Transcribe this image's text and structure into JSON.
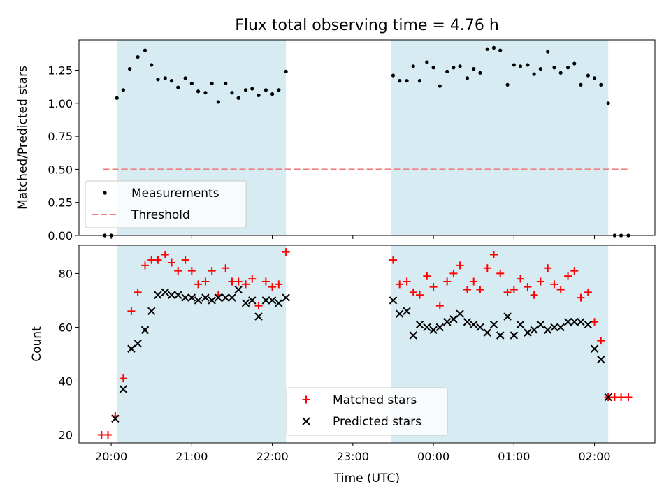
{
  "chart_data": [
    {
      "type": "scatter",
      "title": "Flux total observing time = 4.76 h",
      "xlabel": "",
      "ylabel": "Matched/Predicted stars",
      "ylim": [
        0,
        1.48
      ],
      "yticks": [
        "0.00",
        "0.25",
        "0.50",
        "0.75",
        "1.00",
        "1.25"
      ],
      "ytick_values": [
        0,
        0.25,
        0.5,
        0.75,
        1.0,
        1.25
      ],
      "x_unit": "hours since 20:00 UTC",
      "xlim": [
        -0.4,
        6.75
      ],
      "shaded_intervals": [
        [
          0.07,
          2.17
        ],
        [
          3.47,
          6.17
        ]
      ],
      "legend": {
        "position": "lower-left",
        "entries": [
          "Measurements",
          "Threshold"
        ]
      },
      "series": [
        {
          "name": "Measurements",
          "marker": "dot",
          "color": "#000000",
          "points": [
            [
              -0.08,
              0.0
            ],
            [
              0.0,
              0.0
            ],
            [
              0.07,
              1.04
            ],
            [
              0.15,
              1.1
            ],
            [
              0.23,
              1.26
            ],
            [
              0.33,
              1.35
            ],
            [
              0.42,
              1.4
            ],
            [
              0.5,
              1.29
            ],
            [
              0.58,
              1.18
            ],
            [
              0.67,
              1.19
            ],
            [
              0.75,
              1.17
            ],
            [
              0.83,
              1.12
            ],
            [
              0.92,
              1.19
            ],
            [
              1.0,
              1.15
            ],
            [
              1.08,
              1.09
            ],
            [
              1.17,
              1.08
            ],
            [
              1.25,
              1.15
            ],
            [
              1.33,
              1.01
            ],
            [
              1.42,
              1.15
            ],
            [
              1.5,
              1.08
            ],
            [
              1.58,
              1.04
            ],
            [
              1.67,
              1.1
            ],
            [
              1.75,
              1.11
            ],
            [
              1.83,
              1.06
            ],
            [
              1.92,
              1.1
            ],
            [
              2.0,
              1.07
            ],
            [
              2.08,
              1.1
            ],
            [
              2.17,
              1.24
            ],
            [
              3.5,
              1.21
            ],
            [
              3.58,
              1.17
            ],
            [
              3.67,
              1.17
            ],
            [
              3.75,
              1.28
            ],
            [
              3.83,
              1.17
            ],
            [
              3.92,
              1.31
            ],
            [
              4.0,
              1.27
            ],
            [
              4.08,
              1.13
            ],
            [
              4.17,
              1.24
            ],
            [
              4.25,
              1.27
            ],
            [
              4.33,
              1.28
            ],
            [
              4.42,
              1.19
            ],
            [
              4.5,
              1.26
            ],
            [
              4.58,
              1.23
            ],
            [
              4.67,
              1.41
            ],
            [
              4.75,
              1.42
            ],
            [
              4.83,
              1.4
            ],
            [
              4.92,
              1.14
            ],
            [
              5.0,
              1.29
            ],
            [
              5.08,
              1.28
            ],
            [
              5.17,
              1.29
            ],
            [
              5.25,
              1.22
            ],
            [
              5.33,
              1.26
            ],
            [
              5.42,
              1.39
            ],
            [
              5.5,
              1.27
            ],
            [
              5.58,
              1.23
            ],
            [
              5.67,
              1.27
            ],
            [
              5.75,
              1.3
            ],
            [
              5.83,
              1.14
            ],
            [
              5.92,
              1.21
            ],
            [
              6.0,
              1.19
            ],
            [
              6.08,
              1.14
            ],
            [
              6.17,
              1.0
            ],
            [
              6.25,
              0.0
            ],
            [
              6.33,
              0.0
            ],
            [
              6.42,
              0.0
            ]
          ]
        },
        {
          "name": "Threshold",
          "line": "dashed",
          "color": "#f08080",
          "points": [
            [
              -0.1,
              0.5
            ],
            [
              6.42,
              0.5
            ]
          ]
        }
      ]
    },
    {
      "type": "scatter",
      "title": "",
      "xlabel": "Time (UTC)",
      "ylabel": "Count",
      "ylim": [
        17,
        90.5
      ],
      "yticks": [
        "20",
        "40",
        "60",
        "80"
      ],
      "ytick_values": [
        20,
        40,
        60,
        80
      ],
      "x_unit": "hours since 20:00 UTC",
      "xlim": [
        -0.4,
        6.75
      ],
      "xticks": [
        "20:00",
        "21:00",
        "22:00",
        "23:00",
        "00:00",
        "01:00",
        "02:00"
      ],
      "xtick_values": [
        0,
        1,
        2,
        3,
        4,
        5,
        6
      ],
      "shaded_intervals": [
        [
          0.07,
          2.17
        ],
        [
          3.47,
          6.17
        ]
      ],
      "legend": {
        "position": "lower-center",
        "entries": [
          "Matched stars",
          "Predicted stars"
        ]
      },
      "series": [
        {
          "name": "Matched stars",
          "marker": "plus",
          "color": "#ff0000",
          "points": [
            [
              -0.12,
              20
            ],
            [
              -0.04,
              20
            ],
            [
              0.05,
              27
            ],
            [
              0.15,
              41
            ],
            [
              0.25,
              66
            ],
            [
              0.33,
              73
            ],
            [
              0.42,
              83
            ],
            [
              0.5,
              85
            ],
            [
              0.58,
              85
            ],
            [
              0.67,
              87
            ],
            [
              0.75,
              84
            ],
            [
              0.83,
              81
            ],
            [
              0.92,
              85
            ],
            [
              1.0,
              81
            ],
            [
              1.08,
              76
            ],
            [
              1.17,
              77
            ],
            [
              1.25,
              81
            ],
            [
              1.33,
              72
            ],
            [
              1.42,
              82
            ],
            [
              1.5,
              77
            ],
            [
              1.58,
              77
            ],
            [
              1.67,
              76
            ],
            [
              1.75,
              78
            ],
            [
              1.83,
              68
            ],
            [
              1.92,
              77
            ],
            [
              2.0,
              75
            ],
            [
              2.08,
              76
            ],
            [
              2.17,
              88
            ],
            [
              3.5,
              85
            ],
            [
              3.58,
              76
            ],
            [
              3.67,
              77
            ],
            [
              3.75,
              73
            ],
            [
              3.83,
              72
            ],
            [
              3.92,
              79
            ],
            [
              4.0,
              75
            ],
            [
              4.08,
              68
            ],
            [
              4.17,
              77
            ],
            [
              4.25,
              80
            ],
            [
              4.33,
              83
            ],
            [
              4.42,
              74
            ],
            [
              4.5,
              77
            ],
            [
              4.58,
              74
            ],
            [
              4.67,
              82
            ],
            [
              4.75,
              87
            ],
            [
              4.83,
              80
            ],
            [
              4.92,
              73
            ],
            [
              5.0,
              74
            ],
            [
              5.08,
              78
            ],
            [
              5.17,
              75
            ],
            [
              5.25,
              72
            ],
            [
              5.33,
              77
            ],
            [
              5.42,
              82
            ],
            [
              5.5,
              76
            ],
            [
              5.58,
              74
            ],
            [
              5.67,
              79
            ],
            [
              5.75,
              81
            ],
            [
              5.83,
              71
            ],
            [
              5.92,
              73
            ],
            [
              6.0,
              62
            ],
            [
              6.08,
              55
            ],
            [
              6.17,
              34
            ],
            [
              6.25,
              34
            ],
            [
              6.33,
              34
            ],
            [
              6.42,
              34
            ]
          ]
        },
        {
          "name": "Predicted stars",
          "marker": "x",
          "color": "#000000",
          "points": [
            [
              0.05,
              26
            ],
            [
              0.15,
              37
            ],
            [
              0.25,
              52
            ],
            [
              0.33,
              54
            ],
            [
              0.42,
              59
            ],
            [
              0.5,
              66
            ],
            [
              0.58,
              72
            ],
            [
              0.67,
              73
            ],
            [
              0.75,
              72
            ],
            [
              0.83,
              72
            ],
            [
              0.92,
              71
            ],
            [
              1.0,
              71
            ],
            [
              1.08,
              70
            ],
            [
              1.17,
              71
            ],
            [
              1.25,
              70
            ],
            [
              1.33,
              71
            ],
            [
              1.42,
              71
            ],
            [
              1.5,
              71
            ],
            [
              1.58,
              74
            ],
            [
              1.67,
              69
            ],
            [
              1.75,
              70
            ],
            [
              1.83,
              64
            ],
            [
              1.92,
              70
            ],
            [
              2.0,
              70
            ],
            [
              2.08,
              69
            ],
            [
              2.17,
              71
            ],
            [
              3.5,
              70
            ],
            [
              3.58,
              65
            ],
            [
              3.67,
              66
            ],
            [
              3.75,
              57
            ],
            [
              3.83,
              61
            ],
            [
              3.92,
              60
            ],
            [
              4.0,
              59
            ],
            [
              4.08,
              60
            ],
            [
              4.17,
              62
            ],
            [
              4.25,
              63
            ],
            [
              4.33,
              65
            ],
            [
              4.42,
              62
            ],
            [
              4.5,
              61
            ],
            [
              4.58,
              60
            ],
            [
              4.67,
              58
            ],
            [
              4.75,
              61
            ],
            [
              4.83,
              57
            ],
            [
              4.92,
              64
            ],
            [
              5.0,
              57
            ],
            [
              5.08,
              61
            ],
            [
              5.17,
              58
            ],
            [
              5.25,
              59
            ],
            [
              5.33,
              61
            ],
            [
              5.42,
              59
            ],
            [
              5.5,
              60
            ],
            [
              5.58,
              60
            ],
            [
              5.67,
              62
            ],
            [
              5.75,
              62
            ],
            [
              5.83,
              62
            ],
            [
              5.92,
              61
            ],
            [
              6.0,
              52
            ],
            [
              6.08,
              48
            ],
            [
              6.17,
              34
            ]
          ]
        }
      ]
    }
  ]
}
